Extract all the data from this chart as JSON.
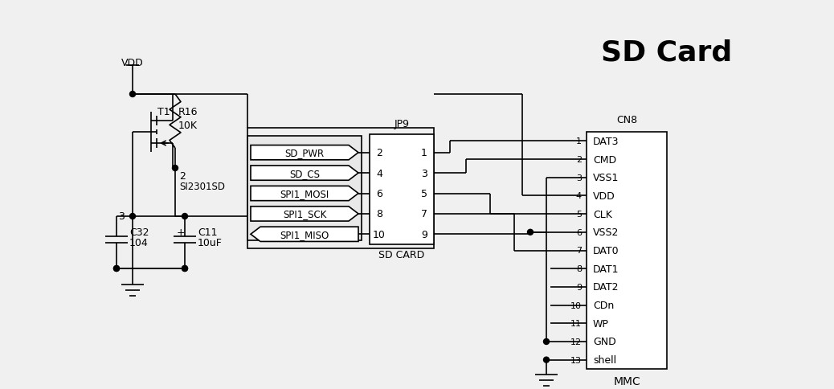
{
  "title": "SD Card",
  "bg_color": "#f0f0f0",
  "line_color": "#000000",
  "jp9_signals": [
    "SD_PWR",
    "SD_CS",
    "SPI1_MOSI",
    "SPI1_SCK",
    "SPI1_MISO"
  ],
  "jp9_pins_left": [
    "2",
    "4",
    "6",
    "8",
    "10"
  ],
  "jp9_pins_right": [
    "1",
    "3",
    "5",
    "7",
    "9"
  ],
  "cn8_pins": [
    "1",
    "2",
    "3",
    "4",
    "5",
    "6",
    "7",
    "8",
    "9",
    "10",
    "11",
    "12",
    "13"
  ],
  "cn8_signals": [
    "DAT3",
    "CMD",
    "VSS1",
    "VDD",
    "CLK",
    "VSS2",
    "DAT0",
    "DAT1",
    "DAT2",
    "CDn",
    "WP",
    "GND",
    "shell"
  ],
  "vdd_label": "VDD",
  "r16_label": "R16",
  "r16_val": "10K",
  "t1_label": "T1",
  "transistor_label": "SI2301SD",
  "pin2_label": "2",
  "pin3_label": "3",
  "c32_label": "C32",
  "c32_val": "104",
  "c11_label": "C11",
  "c11_val": "10uF",
  "jp9_label": "JP9",
  "sd_card_label": "SD CARD",
  "cn8_label": "CN8",
  "mmc_label": "MMC"
}
